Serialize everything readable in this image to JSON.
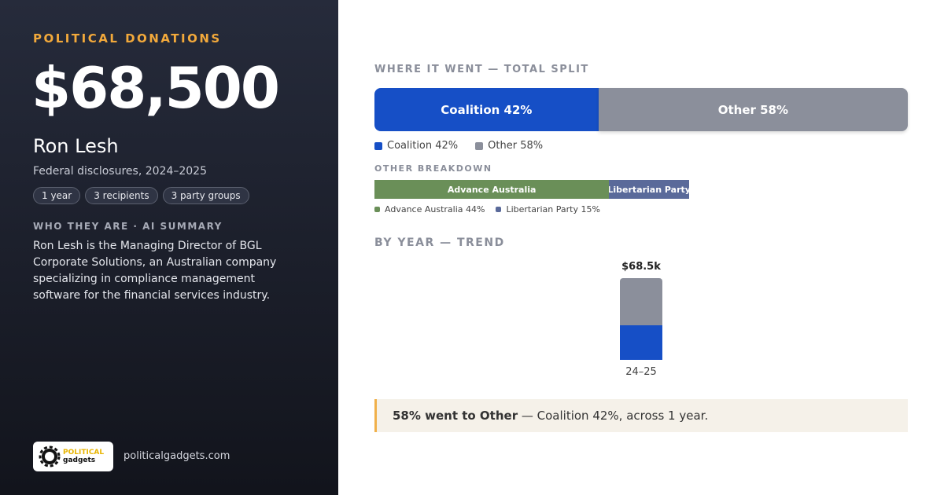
{
  "left": {
    "eyebrow": "POLITICAL DONATIONS",
    "amount": "$68,500",
    "name": "Ron Lesh",
    "subtitle": "Federal disclosures, 2024–2025",
    "pills": [
      "1 year",
      "3 recipients",
      "3 party groups"
    ],
    "section": "WHO THEY ARE · AI SUMMARY",
    "summary": "Ron Lesh is the Managing Director of BGL Corporate Solutions, an Australian company specializing in compliance management software for the financial services industry.",
    "logo": [
      "POLITICAL",
      "gadgets"
    ],
    "site": "politicalgadgets.com"
  },
  "chart_data": [
    {
      "type": "split",
      "title": "WHERE IT WENT — TOTAL SPLIT",
      "categories": [
        "Coalition",
        "Other"
      ],
      "values": [
        42,
        58
      ],
      "value_labels": [
        "Coalition 42%",
        "Other 58%"
      ],
      "colors": [
        "#164fc6",
        "#8b8f9b"
      ],
      "xlim": [
        0,
        100
      ]
    },
    {
      "type": "breakdown",
      "title": "OTHER BREAKDOWN",
      "categories": [
        "Advance Australia",
        "Libertarian Party"
      ],
      "values": [
        44,
        15
      ],
      "value_labels": [
        "Advance Australia 44%",
        "Libertarian Party 15%"
      ],
      "colors": [
        "#6a8f58",
        "#5a6a9a"
      ],
      "xlim": [
        0,
        100
      ]
    },
    {
      "type": "bar",
      "title": "BY YEAR — TREND",
      "categories": [
        "24–25"
      ],
      "ylim": [
        0,
        68500
      ],
      "series": [
        {
          "name": "Coalition",
          "color": "#164fc6",
          "values": [
            28770
          ]
        },
        {
          "name": "Other",
          "color": "#8b8f9b",
          "values": [
            39730
          ]
        }
      ],
      "totals": [
        68500
      ],
      "total_labels": [
        "$68.5k"
      ]
    }
  ],
  "callout": {
    "bold": "58% went to Other",
    "rest": " — Coalition 42%, across 1 year."
  }
}
